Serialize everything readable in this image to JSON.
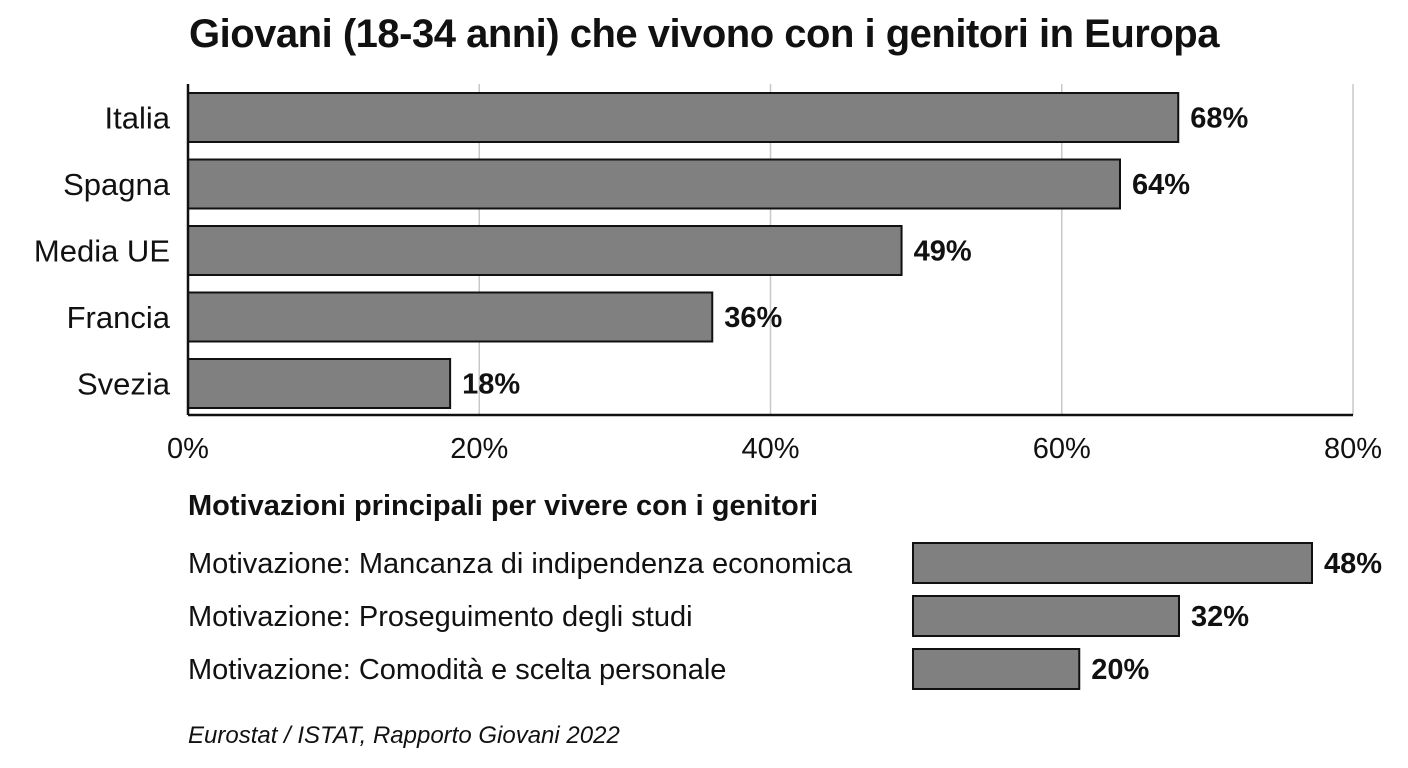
{
  "chart_data": [
    {
      "type": "bar",
      "orientation": "horizontal",
      "title": "Giovani (18-34 anni) che vivono con i genitori in Europa",
      "categories": [
        "Italia",
        "Spagna",
        "Media UE",
        "Francia",
        "Svezia"
      ],
      "values": [
        68,
        64,
        49,
        36,
        18
      ],
      "value_labels": [
        "68%",
        "64%",
        "49%",
        "36%",
        "18%"
      ],
      "xlim": [
        0,
        80
      ],
      "x_ticks": [
        "0%",
        "20%",
        "40%",
        "60%",
        "80%"
      ],
      "grid": "vertical",
      "bar_color": "#808080"
    },
    {
      "type": "bar",
      "orientation": "horizontal",
      "title": "Motivazioni principali per vivere con i genitori",
      "categories": [
        "Motivazione: Mancanza di indipendenza economica",
        "Motivazione: Proseguimento degli studi",
        "Motivazione: Comodità e scelta personale"
      ],
      "values": [
        48,
        32,
        20
      ],
      "value_labels": [
        "48%",
        "32%",
        "20%"
      ],
      "bar_color": "#808080"
    }
  ],
  "source": "Eurostat / ISTAT, Rapporto Giovani 2022"
}
